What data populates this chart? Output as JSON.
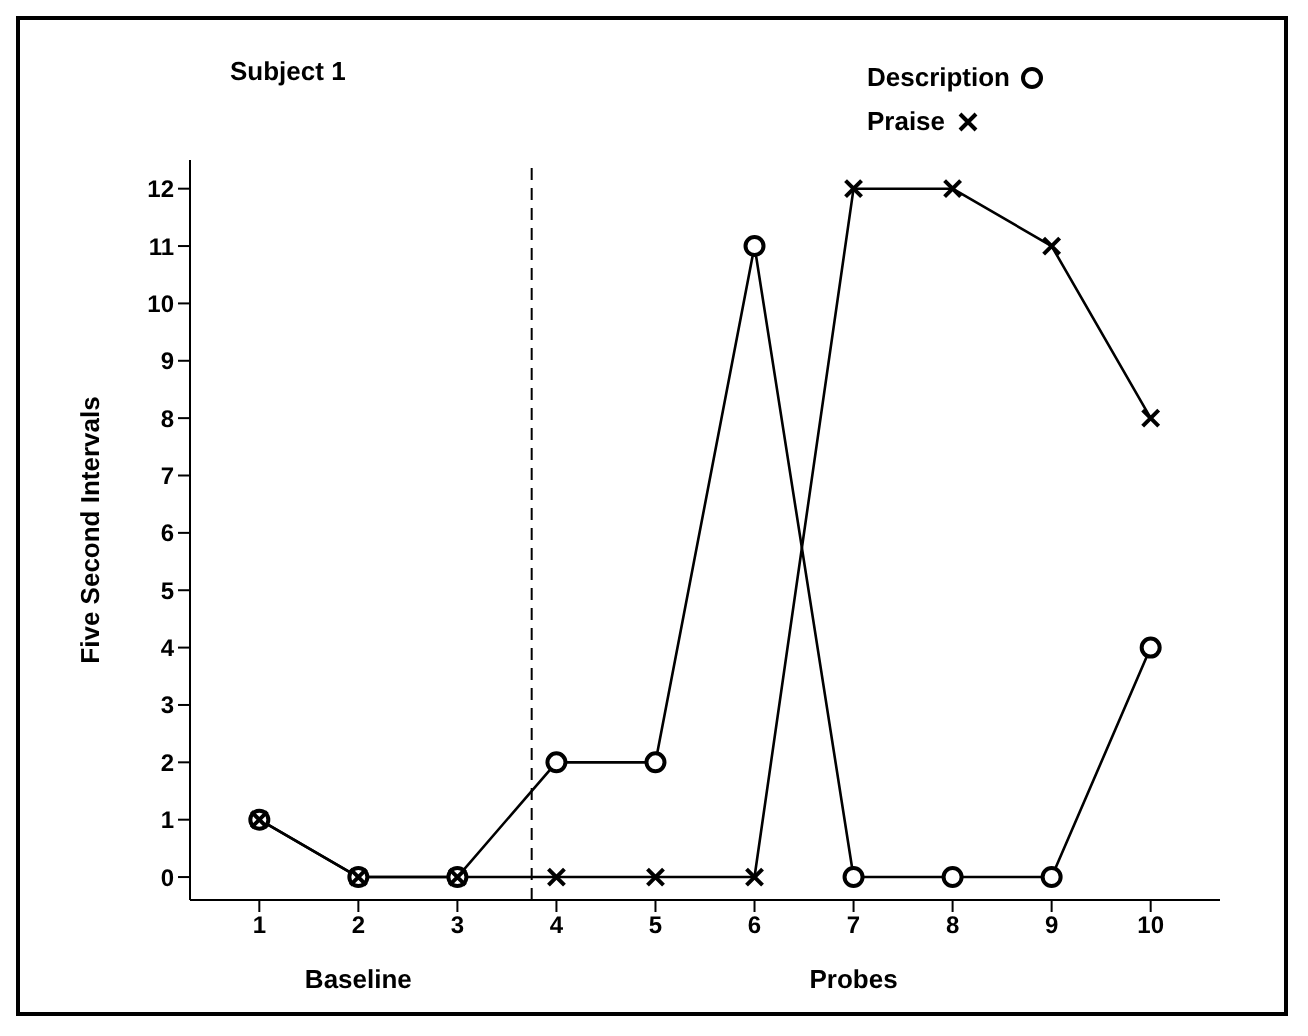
{
  "chart_data": {
    "type": "line",
    "title": "Subject 1",
    "ylabel": "Five Second Intervals",
    "annotations": [
      "Baseline",
      "Probes"
    ],
    "x": [
      1,
      2,
      3,
      4,
      5,
      6,
      7,
      8,
      9,
      10
    ],
    "series": [
      {
        "name": "Description",
        "color": "#000000",
        "marker": "circle",
        "values": [
          1,
          0,
          0,
          2,
          2,
          11,
          0,
          0,
          0,
          4
        ]
      },
      {
        "name": "Praise",
        "color": "#000000",
        "marker": "cross",
        "values": [
          1,
          0,
          0,
          0,
          0,
          0,
          12,
          12,
          11,
          8
        ]
      }
    ],
    "xlim": [
      0.3,
      10.7
    ],
    "xticks": [
      1,
      2,
      3,
      4,
      5,
      6,
      7,
      8,
      9,
      10
    ],
    "ylim": [
      -0.4,
      12.5
    ],
    "yticks": [
      0,
      1,
      2,
      3,
      4,
      5,
      6,
      7,
      8,
      9,
      10,
      11,
      12
    ],
    "ref_lines": [
      {
        "axis": "x",
        "value": 3.75,
        "line_style": "dashed",
        "color": "#000000"
      }
    ],
    "grid": false,
    "legend": "top right",
    "line_style": "solid"
  }
}
